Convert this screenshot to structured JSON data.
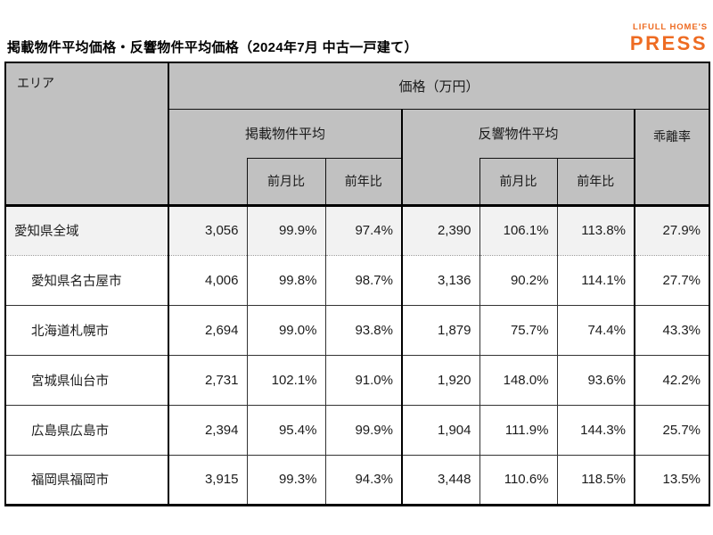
{
  "page_title": "掲載物件平均価格・反響物件平均価格（2024年7月 中古一戸建て）",
  "logo": {
    "line1": "LIFULL HOME'S",
    "line2": "PRESS",
    "color": "#ee6b22"
  },
  "table": {
    "header": {
      "area": "エリア",
      "price_unit": "価格（万円）",
      "listed_avg": "掲載物件平均",
      "response_avg": "反響物件平均",
      "deviation_rate": "乖離率",
      "mom": "前月比",
      "yoy": "前年比"
    },
    "colors": {
      "header_bg": "#c1c1c1",
      "highlight_row_bg": "#f2f2f2",
      "border_thin": "#333333",
      "border_thick": "#000000"
    }
  },
  "chart_data": {
    "type": "table",
    "title": "掲載物件平均価格・反響物件平均価格（2024年7月 中古一戸建て）",
    "unit_label": "価格（万円）",
    "column_groups": [
      "掲載物件平均",
      "反響物件平均",
      "乖離率"
    ],
    "sub_columns": [
      "前月比",
      "前年比"
    ],
    "columns": [
      "エリア",
      "掲載物件平均",
      "掲載物件平均 前月比",
      "掲載物件平均 前年比",
      "反響物件平均",
      "反響物件平均 前月比",
      "反響物件平均 前年比",
      "乖離率"
    ],
    "rows": [
      [
        "愛知県全域",
        "3,056",
        "99.9%",
        "97.4%",
        "2,390",
        "106.1%",
        "113.8%",
        "27.9%"
      ],
      [
        "愛知県名古屋市",
        "4,006",
        "99.8%",
        "98.7%",
        "3,136",
        "90.2%",
        "114.1%",
        "27.7%"
      ],
      [
        "北海道札幌市",
        "2,694",
        "99.0%",
        "93.8%",
        "1,879",
        "75.7%",
        "74.4%",
        "43.3%"
      ],
      [
        "宮城県仙台市",
        "2,731",
        "102.1%",
        "91.0%",
        "1,920",
        "148.0%",
        "93.6%",
        "42.2%"
      ],
      [
        "広島県広島市",
        "2,394",
        "95.4%",
        "99.9%",
        "1,904",
        "111.9%",
        "144.3%",
        "25.7%"
      ],
      [
        "福岡県福岡市",
        "3,915",
        "99.3%",
        "94.3%",
        "3,448",
        "110.6%",
        "118.5%",
        "13.5%"
      ]
    ],
    "highlight_row_index": 0,
    "indented_row_indexes": [
      1,
      2,
      3,
      4,
      5
    ]
  }
}
